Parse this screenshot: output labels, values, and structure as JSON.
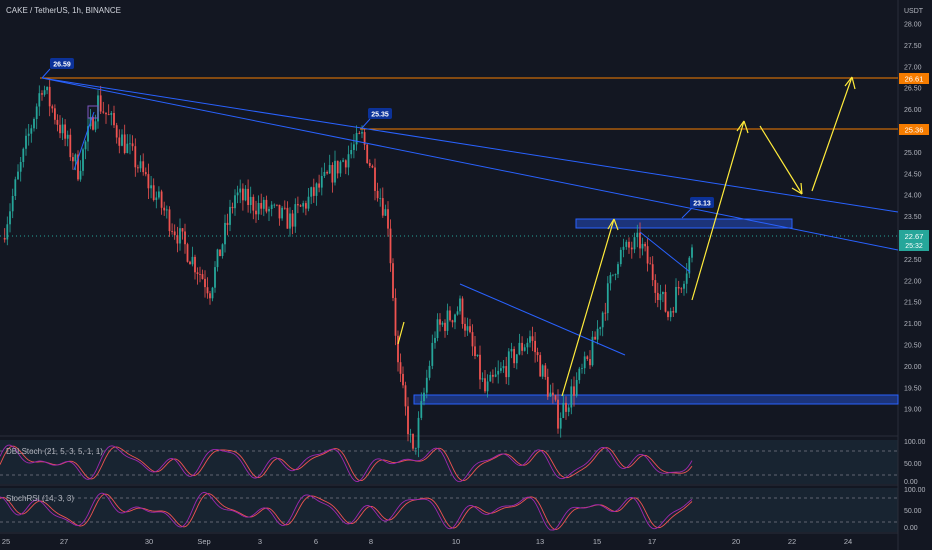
{
  "header": {
    "symbol_line": "CAKE / TetherUS, 1h, BINANCE"
  },
  "price_axis": {
    "currency": "USDT",
    "ticks": [
      "28.00",
      "27.50",
      "27.00",
      "26.50",
      "26.00",
      "25.50",
      "25.00",
      "24.50",
      "24.00",
      "23.50",
      "23.00",
      "22.50",
      "22.00",
      "21.50",
      "21.00",
      "20.50",
      "20.00",
      "19.50",
      "19.00",
      "18.50",
      "18.00"
    ],
    "cursor_price": "22.67",
    "countdown": "25:32",
    "level_labels": [
      "26.61",
      "25.36"
    ]
  },
  "time_axis": {
    "labels": [
      "25",
      "27",
      "30",
      "Sep",
      "3",
      "6",
      "8",
      "10",
      "13",
      "15",
      "17",
      "20",
      "22",
      "24"
    ]
  },
  "annotations": {
    "price_tags": [
      "26.59",
      "25.35",
      "23.13"
    ]
  },
  "indicators": {
    "dbl_stoch": {
      "label": "DBLStoch (21, 5, 3, 5, 1, 1)",
      "ticks": [
        "100.00",
        "50.00",
        "0.00"
      ],
      "colors": {
        "k": "#9c27b0",
        "d": "#ef5350"
      }
    },
    "stoch_rsi": {
      "label": "StochRSI (14, 3, 3)",
      "ticks": [
        "100.00",
        "50.00",
        "0.00"
      ],
      "colors": {
        "k": "#9c27b0",
        "d": "#ef5350"
      }
    }
  },
  "colors": {
    "background": "#131722",
    "up": "#26a69a",
    "down": "#ef5350",
    "trendline": "#2962ff",
    "level": "#f57c00",
    "arrow": "#ffeb3b",
    "zone": "#1e3a8a"
  },
  "chart_data": {
    "type": "candlestick",
    "symbol": "CAKE / TetherUS",
    "interval": "1h",
    "exchange": "BINANCE",
    "x_axis_labels": [
      "25",
      "27",
      "30",
      "Sep",
      "3",
      "6",
      "8",
      "10",
      "13",
      "15",
      "17",
      "20",
      "22",
      "24"
    ],
    "y_axis_unit": "USDT",
    "ylim": [
      17.8,
      28.0
    ],
    "price_path_waypoints": [
      {
        "date": "Aug 25",
        "price": 23.0
      },
      {
        "date": "Aug 26",
        "price": 26.59
      },
      {
        "date": "Aug 27",
        "price": 24.6
      },
      {
        "date": "Aug 28",
        "price": 26.2
      },
      {
        "date": "Aug 29",
        "price": 25.0
      },
      {
        "date": "Aug 31",
        "price": 23.0
      },
      {
        "date": "Sep 1",
        "price": 21.8
      },
      {
        "date": "Sep 2",
        "price": 24.0
      },
      {
        "date": "Sep 4",
        "price": 23.4
      },
      {
        "date": "Sep 6",
        "price": 24.6
      },
      {
        "date": "Sep 7",
        "price": 25.35
      },
      {
        "date": "Sep 7",
        "price": 23.4
      },
      {
        "date": "Sep 8",
        "price": 20.0
      },
      {
        "date": "Sep 8",
        "price": 17.9
      },
      {
        "date": "Sep 9",
        "price": 20.8
      },
      {
        "date": "Sep 10",
        "price": 21.4
      },
      {
        "date": "Sep 11",
        "price": 19.4
      },
      {
        "date": "Sep 12",
        "price": 20.7
      },
      {
        "date": "Sep 13",
        "price": 18.8
      },
      {
        "date": "Sep 14",
        "price": 20.2
      },
      {
        "date": "Sep 15",
        "price": 22.6
      },
      {
        "date": "Sep 16",
        "price": 22.9
      },
      {
        "date": "Sep 17",
        "price": 21.2
      },
      {
        "date": "Sep 18",
        "price": 22.67
      }
    ],
    "horizontal_levels": [
      26.61,
      25.36
    ],
    "price_tags": [
      26.59,
      25.35,
      23.13
    ],
    "zones": [
      {
        "from": 18.55,
        "to": 18.75
      },
      {
        "from": 22.9,
        "to": 23.1
      }
    ],
    "last_price": 22.67,
    "oscillators": [
      {
        "name": "DBLStoch",
        "params": [
          21,
          5,
          3,
          5,
          1,
          1
        ],
        "range": [
          0,
          100
        ],
        "levels": [
          80,
          20
        ]
      },
      {
        "name": "StochRSI",
        "params": [
          14,
          3,
          3
        ],
        "range": [
          0,
          100
        ],
        "levels": [
          80,
          20
        ]
      }
    ]
  }
}
